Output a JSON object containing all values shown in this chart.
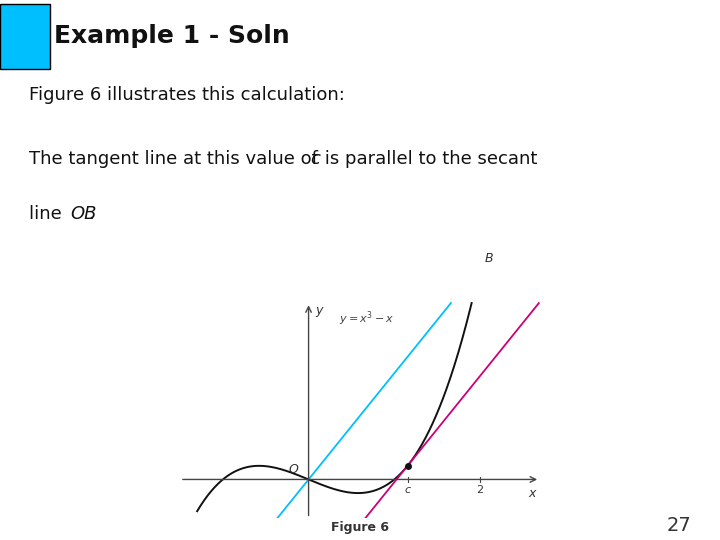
{
  "title": "Example 1 - Soln",
  "title_bg_color": "#fdf5e0",
  "title_square_color": "#00bfff",
  "title_fontsize": 18,
  "body_text1": "Figure 6 illustrates this calculation:",
  "body_fontsize": 13,
  "figure_caption": "Figure 6",
  "page_number": "27",
  "bg_color": "#ffffff",
  "curve_color": "#111111",
  "secant_color": "#00bfff",
  "tangent_color": "#cc0077",
  "point_color": "#111111",
  "axes_color": "#444444",
  "a": 0,
  "b": 2,
  "c_val": 1.1547,
  "xl": -1.5,
  "xr": 2.7,
  "yb": -1.1,
  "yt": 5.0
}
